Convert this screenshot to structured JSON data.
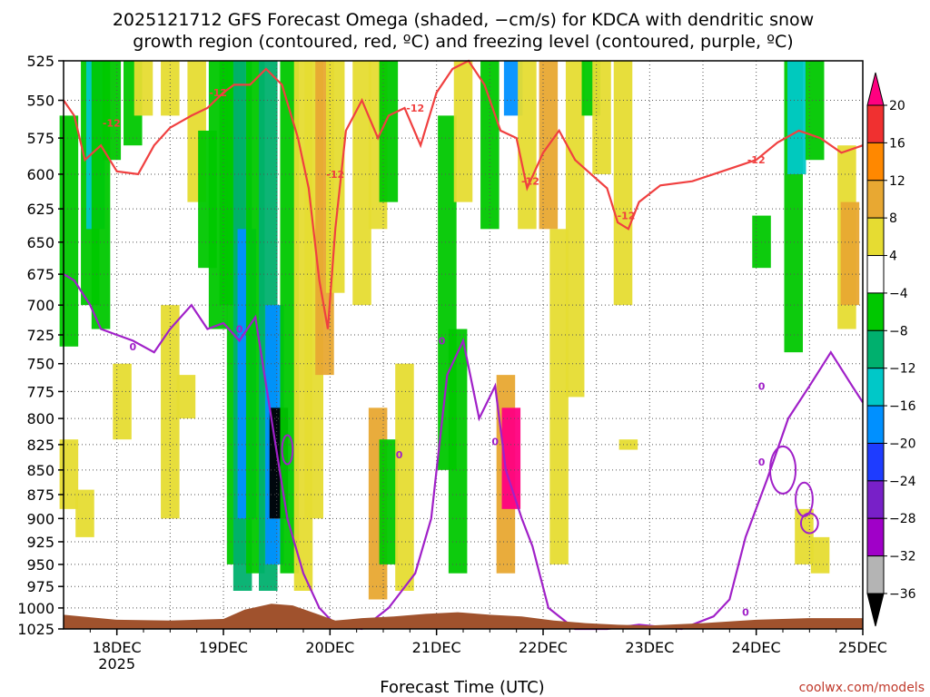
{
  "title": {
    "line1": "2025121712 GFS Forecast Omega (shaded, −cm/s) for KDCA with dendritic snow",
    "line2": "growth region (contoured, red, ºC) and freezing level (contoured, purple, ºC)"
  },
  "credit": "coolwx.com/models",
  "chart_data": {
    "type": "heatmap",
    "title": "2025121712 GFS Forecast Omega (shaded, −cm/s) for KDCA with dendritic snow growth region (contoured, red, ºC) and freezing level (contoured, purple, ºC)",
    "xlabel": "Forecast Time (UTC)",
    "ylabel": "",
    "x_ticks": [
      "18DEC",
      "19DEC",
      "20DEC",
      "21DEC",
      "22DEC",
      "23DEC",
      "24DEC",
      "25DEC"
    ],
    "x_tick_sub": "2025",
    "xlim": [
      "2025-12-17 12Z",
      "2025-12-25 00Z"
    ],
    "y_ticks": [
      525,
      550,
      575,
      600,
      625,
      650,
      675,
      700,
      725,
      750,
      775,
      800,
      825,
      850,
      875,
      900,
      925,
      950,
      975,
      1000,
      1025
    ],
    "ylim": [
      1025,
      525
    ],
    "y_axis": "pressure (hPa), reversed",
    "grid": true,
    "colorbar": {
      "levels": [
        20,
        16,
        12,
        8,
        4,
        -4,
        -8,
        -12,
        -16,
        -20,
        -24,
        -28,
        -32,
        -36
      ],
      "label_order": [
        "20",
        "16",
        "12",
        "8",
        "4",
        "−4",
        "−8",
        "−12",
        "−16",
        "−20",
        "−24",
        "−28",
        "−32",
        "−36"
      ],
      "colors": [
        "#ff0080",
        "#f03030",
        "#ff8800",
        "#e8a832",
        "#e6dc32",
        "#ffffff",
        "#00c800",
        "#00b06e",
        "#00c8c8",
        "#0090ff",
        "#1e3cff",
        "#7820c8",
        "#a000c8",
        "#b4b4b4",
        "#000000"
      ]
    },
    "omega_patches": [
      {
        "x": "17.55",
        "p": [
          560,
          735
        ],
        "c": "#00c800"
      },
      {
        "x": "17.75",
        "p": [
          525,
          700
        ],
        "c": "#00c800"
      },
      {
        "x": "17.8",
        "p": [
          525,
          640
        ],
        "c": "#00c8c8"
      },
      {
        "x": "17.85",
        "p": [
          525,
          720
        ],
        "c": "#00c800"
      },
      {
        "x": "17.95",
        "p": [
          525,
          590
        ],
        "c": "#00c800"
      },
      {
        "x": "18.15",
        "p": [
          525,
          580
        ],
        "c": "#00c800"
      },
      {
        "x": "18.25",
        "p": [
          525,
          560
        ],
        "c": "#e6dc32"
      },
      {
        "x": "18.05",
        "p": [
          750,
          820
        ],
        "c": "#e6dc32"
      },
      {
        "x": "17.55",
        "p": [
          820,
          890
        ],
        "c": "#e6dc32"
      },
      {
        "x": "17.7",
        "p": [
          870,
          920
        ],
        "c": "#e6dc32"
      },
      {
        "x": "18.5",
        "p": [
          525,
          560
        ],
        "c": "#e6dc32"
      },
      {
        "x": "18.75",
        "p": [
          525,
          620
        ],
        "c": "#e6dc32"
      },
      {
        "x": "18.5",
        "p": [
          700,
          900
        ],
        "c": "#e6dc32"
      },
      {
        "x": "18.65",
        "p": [
          760,
          800
        ],
        "c": "#e6dc32"
      },
      {
        "x": "18.85",
        "p": [
          570,
          670
        ],
        "c": "#00c800"
      },
      {
        "x": "18.95",
        "p": [
          525,
          720
        ],
        "c": "#00c800"
      },
      {
        "x": "19.05",
        "p": [
          525,
          700
        ],
        "c": "#00c800"
      },
      {
        "x": "19.12",
        "p": [
          525,
          950
        ],
        "c": "#00c800"
      },
      {
        "x": "19.18",
        "p": [
          525,
          980
        ],
        "c": "#00b06e"
      },
      {
        "x": "19.22",
        "p": [
          640,
          900
        ],
        "c": "#0090ff"
      },
      {
        "x": "19.3",
        "p": [
          525,
          960
        ],
        "c": "#00c800"
      },
      {
        "x": "19.42",
        "p": [
          525,
          980
        ],
        "c": "#00b06e"
      },
      {
        "x": "19.48",
        "p": [
          700,
          950
        ],
        "c": "#0090ff"
      },
      {
        "x": "19.52",
        "p": [
          790,
          900
        ],
        "c": "#000000"
      },
      {
        "x": "19.62",
        "p": [
          525,
          960
        ],
        "c": "#00c800"
      },
      {
        "x": "19.75",
        "p": [
          525,
          980
        ],
        "c": "#e6dc32"
      },
      {
        "x": "19.85",
        "p": [
          525,
          900
        ],
        "c": "#e6dc32"
      },
      {
        "x": "19.95",
        "p": [
          525,
          760
        ],
        "c": "#e8a832"
      },
      {
        "x": "20.05",
        "p": [
          525,
          690
        ],
        "c": "#e6dc32"
      },
      {
        "x": "20.3",
        "p": [
          525,
          700
        ],
        "c": "#e6dc32"
      },
      {
        "x": "20.45",
        "p": [
          525,
          640
        ],
        "c": "#e6dc32"
      },
      {
        "x": "20.55",
        "p": [
          525,
          620
        ],
        "c": "#00c800"
      },
      {
        "x": "20.45",
        "p": [
          790,
          990
        ],
        "c": "#e8a832"
      },
      {
        "x": "20.55",
        "p": [
          820,
          950
        ],
        "c": "#00c800"
      },
      {
        "x": "20.7",
        "p": [
          750,
          980
        ],
        "c": "#e6dc32"
      },
      {
        "x": "21.1",
        "p": [
          560,
          850
        ],
        "c": "#00c800"
      },
      {
        "x": "21.2",
        "p": [
          720,
          960
        ],
        "c": "#00c800"
      },
      {
        "x": "21.25",
        "p": [
          525,
          620
        ],
        "c": "#e6dc32"
      },
      {
        "x": "21.5",
        "p": [
          525,
          640
        ],
        "c": "#00c800"
      },
      {
        "x": "21.65",
        "p": [
          760,
          960
        ],
        "c": "#e8a832"
      },
      {
        "x": "21.7",
        "p": [
          790,
          890
        ],
        "c": "#ff0080"
      },
      {
        "x": "21.72",
        "p": [
          525,
          560
        ],
        "c": "#0090ff"
      },
      {
        "x": "21.85",
        "p": [
          525,
          640
        ],
        "c": "#e6dc32"
      },
      {
        "x": "22.05",
        "p": [
          525,
          640
        ],
        "c": "#e8a832"
      },
      {
        "x": "22.15",
        "p": [
          640,
          950
        ],
        "c": "#e6dc32"
      },
      {
        "x": "22.3",
        "p": [
          525,
          780
        ],
        "c": "#e6dc32"
      },
      {
        "x": "22.45",
        "p": [
          525,
          560
        ],
        "c": "#00c800"
      },
      {
        "x": "22.55",
        "p": [
          525,
          600
        ],
        "c": "#e6dc32"
      },
      {
        "x": "22.75",
        "p": [
          525,
          700
        ],
        "c": "#e6dc32"
      },
      {
        "x": "22.8",
        "p": [
          820,
          830
        ],
        "c": "#e6dc32"
      },
      {
        "x": "24.05",
        "p": [
          630,
          670
        ],
        "c": "#00c800"
      },
      {
        "x": "24.35",
        "p": [
          525,
          740
        ],
        "c": "#00c800"
      },
      {
        "x": "24.38",
        "p": [
          525,
          600
        ],
        "c": "#00c8c8"
      },
      {
        "x": "24.55",
        "p": [
          525,
          590
        ],
        "c": "#00c800"
      },
      {
        "x": "24.85",
        "p": [
          580,
          720
        ],
        "c": "#e6dc32"
      },
      {
        "x": "24.88",
        "p": [
          620,
          700
        ],
        "c": "#e8a832"
      },
      {
        "x": "24.45",
        "p": [
          890,
          950
        ],
        "c": "#e6dc32"
      },
      {
        "x": "24.6",
        "p": [
          920,
          960
        ],
        "c": "#e6dc32"
      }
    ],
    "series": [
      {
        "name": "−12ºC",
        "color": "#f04040",
        "x": [
          17.5,
          17.6,
          17.7,
          17.85,
          18.0,
          18.2,
          18.35,
          18.5,
          18.7,
          18.85,
          19.0,
          19.1,
          19.25,
          19.4,
          19.55,
          19.7,
          19.8,
          19.9,
          19.98,
          20.05,
          20.15,
          20.3,
          20.45,
          20.55,
          20.7,
          20.85,
          21.0,
          21.15,
          21.3,
          21.45,
          21.6,
          21.75,
          21.85,
          22.0,
          22.15,
          22.3,
          22.45,
          22.6,
          22.7,
          22.8,
          22.9,
          23.1,
          23.4,
          23.6,
          23.8,
          24.0,
          24.2,
          24.4,
          24.6,
          24.8,
          25.0
        ],
        "y": [
          550,
          560,
          590,
          580,
          598,
          600,
          580,
          568,
          560,
          555,
          545,
          540,
          540,
          530,
          540,
          575,
          610,
          680,
          720,
          640,
          570,
          550,
          575,
          560,
          555,
          580,
          545,
          530,
          525,
          540,
          570,
          575,
          610,
          585,
          570,
          590,
          600,
          610,
          635,
          640,
          620,
          608,
          605,
          600,
          595,
          590,
          578,
          570,
          575,
          585,
          580
        ]
      },
      {
        "name": "0ºC",
        "color": "#a020c8",
        "x": [
          17.5,
          17.6,
          17.75,
          17.85,
          18.0,
          18.15,
          18.35,
          18.5,
          18.7,
          18.85,
          19.0,
          19.15,
          19.3,
          19.45,
          19.6,
          19.75,
          19.9,
          20.05,
          20.3,
          20.55,
          20.8,
          20.95,
          21.0,
          21.1,
          21.25,
          21.4,
          21.55,
          21.65,
          21.8,
          21.9,
          22.05,
          22.3,
          22.6,
          22.9,
          23.3,
          23.6,
          23.75,
          23.9,
          24.1,
          24.3,
          24.5,
          24.7,
          24.9,
          25.0
        ],
        "y": [
          675,
          680,
          700,
          720,
          725,
          730,
          740,
          720,
          700,
          720,
          715,
          730,
          710,
          800,
          900,
          960,
          1000,
          1020,
          1025,
          1000,
          960,
          900,
          850,
          760,
          730,
          800,
          770,
          850,
          900,
          930,
          1000,
          1025,
          1025,
          1020,
          1025,
          1010,
          990,
          920,
          860,
          800,
          770,
          740,
          770,
          785
        ]
      }
    ],
    "contour_labels": [
      {
        "text": "-12",
        "color": "#f04040"
      },
      {
        "text": "-12",
        "color": "#f04040"
      },
      {
        "text": "-12",
        "color": "#f04040"
      },
      {
        "text": "-12",
        "color": "#f04040"
      },
      {
        "text": "-12",
        "color": "#f04040"
      },
      {
        "text": "-12",
        "color": "#f04040"
      },
      {
        "text": "-12",
        "color": "#f04040"
      },
      {
        "text": "0",
        "color": "#a020c8"
      },
      {
        "text": "0",
        "color": "#a020c8"
      },
      {
        "text": "0",
        "color": "#a020c8"
      },
      {
        "text": "0",
        "color": "#a020c8"
      },
      {
        "text": "0",
        "color": "#a020c8"
      },
      {
        "text": "0",
        "color": "#a020c8"
      },
      {
        "text": "0",
        "color": "#a020c8"
      },
      {
        "text": "0",
        "color": "#a020c8"
      }
    ],
    "terrain": {
      "color": "#a0522d"
    }
  }
}
